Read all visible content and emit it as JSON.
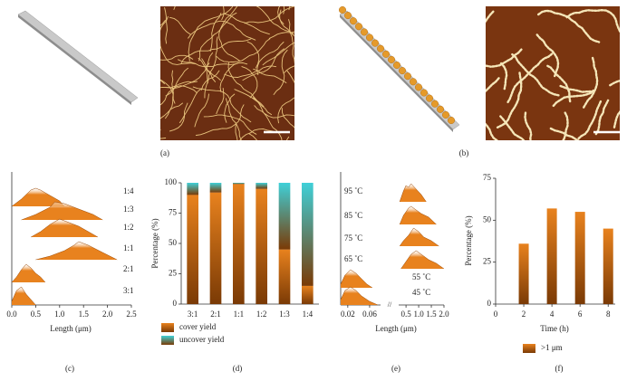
{
  "panel_labels": [
    "(a)",
    "(b)",
    "(c)",
    "(d)",
    "(e)",
    "(f)"
  ],
  "chart_data": [
    {
      "type": "ridge",
      "xlabel": "Length (μm)",
      "xlim": [
        0,
        2.5
      ],
      "xticks": [
        {
          "value": 0,
          "label": "0.0"
        },
        0.5,
        {
          "value": 1,
          "label": "1.0"
        },
        1.5,
        {
          "value": 2,
          "label": "2.0"
        },
        2.5
      ],
      "color": "#e8821e",
      "series": [
        {
          "name": "1:4",
          "x": [
            0,
            0.2,
            0.4,
            0.5,
            0.6,
            0.8,
            1.0,
            1.1
          ],
          "values": [
            0,
            0.4,
            0.9,
            1,
            0.9,
            0.6,
            0.3,
            0
          ]
        },
        {
          "name": "1:3",
          "x": [
            0.2,
            0.5,
            0.8,
            0.9,
            1.1,
            1.4,
            1.7,
            1.9
          ],
          "values": [
            0,
            0.3,
            0.7,
            1,
            0.9,
            0.6,
            0.3,
            0
          ]
        },
        {
          "name": "1:2",
          "x": [
            0.4,
            0.6,
            0.8,
            1.0,
            1.2,
            1.4,
            1.6,
            1.8
          ],
          "values": [
            0,
            0.3,
            0.7,
            1,
            0.8,
            0.6,
            0.3,
            0
          ]
        },
        {
          "name": "1:1",
          "x": [
            0.5,
            0.8,
            1.1,
            1.3,
            1.4,
            1.6,
            1.9,
            2.2
          ],
          "values": [
            0,
            0.2,
            0.5,
            0.8,
            1,
            0.8,
            0.4,
            0
          ]
        },
        {
          "name": "2:1",
          "x": [
            0,
            0.1,
            0.2,
            0.3,
            0.4,
            0.5,
            0.6,
            0.7
          ],
          "values": [
            0,
            0.3,
            0.7,
            1,
            0.8,
            0.5,
            0.3,
            0
          ]
        },
        {
          "name": "3:1",
          "x": [
            0,
            0.1,
            0.2,
            0.3,
            0.4,
            0.5
          ],
          "values": [
            0.2,
            0.8,
            1,
            0.6,
            0.3,
            0
          ]
        }
      ]
    },
    {
      "type": "bar",
      "stacked": true,
      "ylabel": "Percentage (%)",
      "categories": [
        "3:1",
        "2:1",
        "1:1",
        "1:2",
        "1:3",
        "1:4"
      ],
      "ylim": [
        0,
        100
      ],
      "yticks": [
        0,
        25,
        50,
        75,
        100
      ],
      "series": [
        {
          "name": "cover yield",
          "color": "#e8821e",
          "values": [
            90,
            92,
            99,
            95,
            45,
            15
          ]
        },
        {
          "name": "uncover yield",
          "color": "#3fd0d8",
          "values": [
            10,
            8,
            1,
            5,
            55,
            85
          ]
        }
      ]
    },
    {
      "type": "ridge",
      "xlabel": "Length (μm)",
      "color": "#e8821e",
      "x_segments": [
        {
          "xlim": [
            0.007,
            0.08
          ],
          "xticks": [
            0.02,
            0.06
          ]
        },
        {
          "xlim": [
            0.21,
            2.0
          ],
          "xticks": [
            0.5,
            {
              "value": 1,
              "label": "1.0"
            },
            1.5,
            {
              "value": 2,
              "label": "2.0"
            }
          ]
        }
      ],
      "series": [
        {
          "name": "95 ˚C",
          "segment": 1,
          "x": [
            0.25,
            0.4,
            0.5,
            0.6,
            0.7,
            0.9,
            1.1,
            1.3
          ],
          "values": [
            0,
            0.6,
            0.9,
            0.8,
            1,
            0.7,
            0.4,
            0
          ]
        },
        {
          "name": "85 ˚C",
          "segment": 1,
          "x": [
            0.25,
            0.4,
            0.6,
            0.7,
            0.9,
            1.1,
            1.4,
            1.7
          ],
          "values": [
            0,
            0.5,
            0.9,
            1,
            0.8,
            0.6,
            0.4,
            0
          ]
        },
        {
          "name": "75 ˚C",
          "segment": 1,
          "x": [
            0.25,
            0.4,
            0.6,
            0.8,
            1.0,
            1.2,
            1.5,
            1.8
          ],
          "values": [
            0,
            0.3,
            0.6,
            1,
            0.8,
            0.5,
            0.3,
            0
          ]
        },
        {
          "name": "65 ˚C",
          "segment": 1,
          "x": [
            0.3,
            0.5,
            0.7,
            0.9,
            1.1,
            1.4,
            1.7,
            2.0
          ],
          "values": [
            0,
            0.4,
            0.8,
            1,
            0.8,
            0.5,
            0.3,
            0
          ]
        },
        {
          "name": "55 ˚C",
          "segment": 0,
          "x": [
            0.007,
            0.015,
            0.025,
            0.035,
            0.045,
            0.055,
            0.065
          ],
          "values": [
            0.2,
            0.7,
            1,
            0.8,
            0.5,
            0.2,
            0
          ]
        },
        {
          "name": "45 ˚C",
          "segment": 0,
          "x": [
            0.007,
            0.015,
            0.025,
            0.035,
            0.045,
            0.06,
            0.075
          ],
          "values": [
            0.3,
            0.8,
            1,
            0.8,
            0.5,
            0.2,
            0
          ]
        }
      ]
    },
    {
      "type": "bar",
      "xlabel": "Time (h)",
      "ylabel": "Percentage (%)",
      "x": [
        2,
        4,
        6,
        8
      ],
      "xlim": [
        0,
        8.5
      ],
      "xticks": [
        0,
        2,
        4,
        6,
        8
      ],
      "ylim": [
        0,
        75
      ],
      "yticks": [
        0,
        25,
        50,
        75
      ],
      "series": [
        {
          "name": ">1 μm",
          "color": "#e8821e",
          "values": [
            36,
            57,
            55,
            45
          ]
        }
      ]
    }
  ]
}
